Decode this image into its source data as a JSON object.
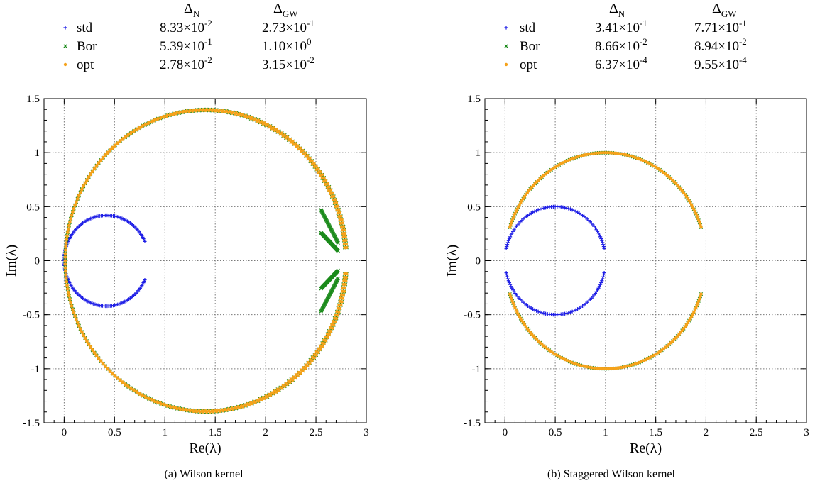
{
  "captions": [
    "(a) Wilson kernel",
    "(b) Staggered Wilson kernel"
  ],
  "legend": {
    "header_n": {
      "main": "Δ",
      "sub": "N"
    },
    "header_gw": {
      "main": "Δ",
      "sub": "GW"
    },
    "series_labels": [
      "std",
      "Bor",
      "opt"
    ],
    "colors": {
      "std": "#1f1fe6",
      "Bor": "#1a8a1a",
      "opt": "#f5a21b"
    }
  },
  "chart_data": [
    {
      "type": "scatter",
      "title": "",
      "xlabel": "Re(λ)",
      "ylabel": "Im(λ)",
      "xlim": [
        -0.2,
        3.0
      ],
      "ylim": [
        -1.5,
        1.5
      ],
      "x_ticks": [
        "0",
        "0.5",
        "1",
        "1.5",
        "2",
        "2.5",
        "3"
      ],
      "y_ticks": [
        "-1.5",
        "-1",
        "-0.5",
        "0",
        "0.5",
        "1",
        "1.5"
      ],
      "grid": true,
      "legend_position": "top, above plot",
      "legend_rows": [
        {
          "label": "std",
          "marker": "+",
          "dn": "8.33×10",
          "dn_exp": "-2",
          "dgw": "2.73×10",
          "dgw_exp": "-1"
        },
        {
          "label": "Bor",
          "marker": "×",
          "dn": "5.39×10",
          "dn_exp": "-1",
          "dgw": "1.10×10",
          "dgw_exp": "0"
        },
        {
          "label": "opt",
          "marker": "•",
          "dn": "2.78×10",
          "dn_exp": "-2",
          "dgw": "3.15×10",
          "dgw_exp": "-2"
        }
      ],
      "series": [
        {
          "name": "std",
          "shape": "circle",
          "center": [
            0.42,
            0
          ],
          "radius": 0.42,
          "gap_deg": 25
        },
        {
          "name": "Bor",
          "shape": "circle",
          "center": [
            1.41,
            0
          ],
          "radius": 1.4,
          "gap_deg": 5,
          "lobe_x": [
            2.55,
            2.72
          ],
          "lobe_y": 0.47
        },
        {
          "name": "opt",
          "shape": "circle",
          "center": [
            1.41,
            0
          ],
          "radius": 1.4,
          "gap_deg": 5
        }
      ]
    },
    {
      "type": "scatter",
      "title": "",
      "xlabel": "Re(λ)",
      "ylabel": "Im(λ)",
      "xlim": [
        -0.2,
        3.0
      ],
      "ylim": [
        -1.5,
        1.5
      ],
      "x_ticks": [
        "0",
        "0.5",
        "1",
        "1.5",
        "2",
        "2.5",
        "3"
      ],
      "y_ticks": [
        "-1.5",
        "-1",
        "-0.5",
        "0",
        "0.5",
        "1",
        "1.5"
      ],
      "grid": true,
      "legend_position": "top, above plot",
      "legend_rows": [
        {
          "label": "std",
          "marker": "+",
          "dn": "3.41×10",
          "dn_exp": "-1",
          "dgw": "7.71×10",
          "dgw_exp": "-1"
        },
        {
          "label": "Bor",
          "marker": "×",
          "dn": "8.66×10",
          "dn_exp": "-2",
          "dgw": "8.94×10",
          "dgw_exp": "-2"
        },
        {
          "label": "opt",
          "marker": "•",
          "dn": "6.37×10",
          "dn_exp": "-4",
          "dgw": "9.55×10",
          "dgw_exp": "-4"
        }
      ],
      "series": [
        {
          "name": "std",
          "shape": "two-arcs",
          "center": [
            0.5,
            0
          ],
          "radius": 0.5,
          "gap_deg": 13,
          "gap_real_deg": 13
        },
        {
          "name": "Bor",
          "shape": "two-arcs",
          "center": [
            1.0,
            0
          ],
          "radius": 1.0,
          "gap_deg": 18,
          "gap_real_deg": 18
        },
        {
          "name": "opt",
          "shape": "two-arcs",
          "center": [
            1.0,
            0
          ],
          "radius": 1.0,
          "gap_deg": 18,
          "gap_real_deg": 18
        }
      ]
    }
  ]
}
